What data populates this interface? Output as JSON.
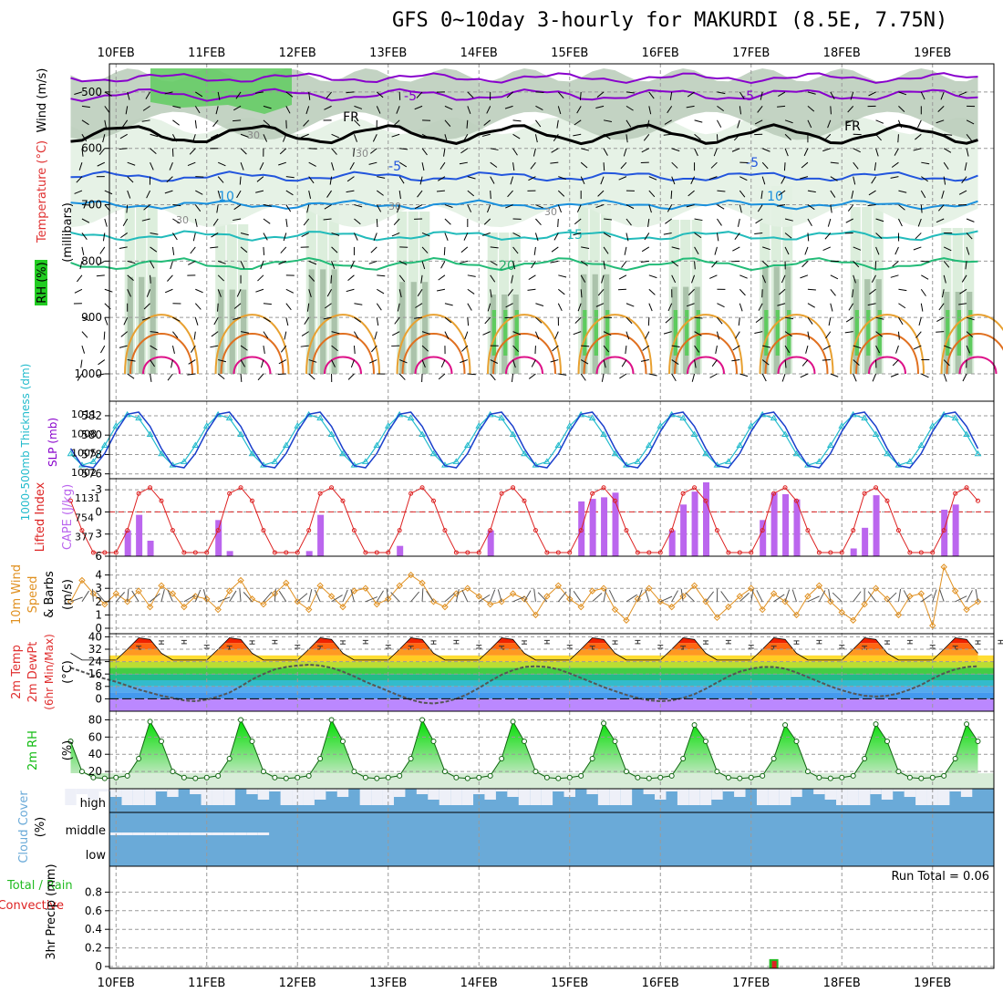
{
  "page": {
    "title": "GFS 0~10day 3-hourly for MAKURDI (8.5E, 7.75N)"
  },
  "colors": {
    "rh_green": "#22cc22",
    "wind_axis": "#000000",
    "temp_label": "#e03030",
    "tmp_purple": "#8800cc",
    "slp_cyan": "#22bbcc",
    "thick_blue": "#1a3fcc",
    "lifted_red": "#dd2222",
    "cape_purple": "#bb66ee",
    "wind10_orange": "#e09020",
    "rh2m_green": "#11bb11",
    "cloud_blue": "#6aaad8",
    "precip_green": "#22bb22",
    "precip_red": "#dd2222"
  },
  "chart_data": {
    "type": "multi-panel meteogram",
    "title": "GFS 0~10day 3-hourly for MAKURDI (8.5E, 7.75N)",
    "x_axis": {
      "dates": [
        "10FEB",
        "11FEB",
        "12FEB",
        "13FEB",
        "14FEB",
        "15FEB",
        "16FEB",
        "17FEB",
        "18FEB",
        "19FEB"
      ],
      "start_hours_before_first_date": 12,
      "step_hours": 3,
      "n_steps": 81
    },
    "panels": [
      {
        "id": "upper_air",
        "ylabel_parts": [
          "RH (%)",
          "Temperature (°C)",
          "Wind (m/s)"
        ],
        "y_units_label": "(millibars)",
        "yticks": [
          "500",
          "600",
          "700",
          "800",
          "900",
          "1000"
        ],
        "ylim": [
          450,
          1000
        ],
        "isotherm_labels": [
          "-5",
          "-5",
          "FR",
          "FR",
          "-5",
          "-5",
          "10",
          "10",
          "15",
          "20"
        ],
        "rh_labels": [
          "30",
          "30",
          "30",
          "30",
          "30"
        ]
      },
      {
        "id": "slp_thickness",
        "ylabel_left": "1000-500mb Thickness (dm)",
        "ylabel_right": "SLP (mb)",
        "left_ticks": [
          "582",
          "580",
          "578",
          "576"
        ],
        "right_ticks": [
          "1011",
          "1008",
          "1005",
          "1002"
        ],
        "slp_range": [
          1001,
          1013
        ],
        "thickness_range": [
          575.5,
          583.5
        ],
        "slp_amplitude": 4,
        "thickness_amplitude": 3
      },
      {
        "id": "li_cape",
        "ylabel_left": "Lifted Index",
        "ylabel_right": "CAPE (J/kg)",
        "left_ticks": [
          "-3",
          "0",
          "3",
          "6"
        ],
        "right_ticks": [
          "1131",
          "754",
          "377"
        ],
        "cape_bars": [
          {
            "date_index": 0,
            "values": [
              500,
              800,
              300
            ]
          },
          {
            "date_index": 1,
            "values": [
              700,
              100
            ]
          },
          {
            "date_index": 2,
            "values": [
              100,
              800
            ]
          },
          {
            "date_index": 3,
            "values": [
              200
            ]
          },
          {
            "date_index": 4,
            "values": [
              500
            ]
          },
          {
            "date_index": 5,
            "values": [
              1060,
              1110,
              1140,
              1230
            ]
          },
          {
            "date_index": 6,
            "values": [
              500,
              1000,
              1250,
              1430
            ]
          },
          {
            "date_index": 7,
            "values": [
              700,
              1230,
              1200,
              1100
            ]
          },
          {
            "date_index": 8,
            "values": [
              150,
              550,
              1180
            ]
          },
          {
            "date_index": 9,
            "values": [
              900,
              1000
            ]
          }
        ]
      },
      {
        "id": "wind10",
        "ylabel": "10m Wind Speed & Barbs (m/s)",
        "yticks": [
          "4",
          "3",
          "2",
          "1",
          "0"
        ],
        "ylim": [
          0,
          5
        ],
        "speeds": [
          2.0,
          3.6,
          2.6,
          1.8,
          2.6,
          2.0,
          2.8,
          1.6,
          3.2,
          2.6,
          1.6,
          2.4,
          2.2,
          1.4,
          2.8,
          3.6,
          2.2,
          1.8,
          2.6,
          3.4,
          2.0,
          1.4,
          3.2,
          2.4,
          1.6,
          2.8,
          3.0,
          1.8,
          2.2,
          3.2,
          4.0,
          3.4,
          2.0,
          1.6,
          2.6,
          3.0,
          2.4,
          1.8,
          2.0,
          2.6,
          2.2,
          1.0,
          2.4,
          3.2,
          2.2,
          1.6,
          2.8,
          3.0,
          1.4,
          0.6,
          2.2,
          3.0,
          2.0,
          1.6,
          2.4,
          3.2,
          2.0,
          0.8,
          1.6,
          2.4,
          3.0,
          1.4,
          2.6,
          2.0,
          1.0,
          2.4,
          3.2,
          2.0,
          1.2,
          0.6,
          1.8,
          3.0,
          2.2,
          1.0,
          2.4,
          2.6,
          0.2,
          4.6,
          2.8,
          1.4,
          2.0
        ]
      },
      {
        "id": "temp2m",
        "ylabel": "2m Temp 2m DewPt (6hr Min/Max) (°C)",
        "yticks": [
          "40",
          "32",
          "24",
          "16",
          "8",
          "0"
        ],
        "ylim": [
          -8,
          42
        ],
        "temp_min": 25,
        "temp_max": 40,
        "dewpoint": [
          20.0,
          17.5,
          15.0,
          13.0,
          11.0,
          8.5,
          6.0,
          4.0,
          2.0,
          0.5,
          -1.0,
          -1.5,
          -0.5,
          1.5,
          4.0,
          8.0,
          12.5,
          16.0,
          19.0,
          20.5,
          21.5,
          22.0,
          21.5,
          20.0,
          17.5,
          14.5,
          11.0,
          8.0,
          5.0,
          2.0,
          -0.5,
          -2.5,
          -3.0,
          -2.0,
          0.0,
          3.0,
          7.0,
          11.5,
          15.5,
          18.5,
          20.5,
          21.0,
          20.5,
          19.0,
          16.5,
          13.5,
          10.5,
          7.5,
          5.0,
          2.5,
          0.5,
          -1.0,
          -1.5,
          -1.0,
          0.5,
          3.0,
          6.5,
          10.5,
          14.5,
          17.5,
          19.5,
          20.5,
          20.5,
          19.5,
          17.0,
          14.0,
          11.0,
          8.0,
          5.5,
          3.5,
          2.0,
          1.5,
          2.0,
          3.5,
          6.0,
          9.0,
          13.0,
          16.5,
          19.0,
          20.5,
          21.0
        ]
      },
      {
        "id": "rh2m",
        "ylabel": "2m RH (%)",
        "yticks": [
          "80",
          "60",
          "40",
          "20"
        ],
        "ylim": [
          0,
          90
        ],
        "peaks": [
          80,
          78,
          80,
          80,
          80,
          78,
          76,
          74,
          74,
          75
        ]
      },
      {
        "id": "cloud",
        "ylabel": "Cloud Cover (%)",
        "levels": [
          "high",
          "middle",
          "low"
        ]
      },
      {
        "id": "precip",
        "ylabel_parts": [
          "Total / Rain",
          "Convective"
        ],
        "ylabel_units": "3hr Precip (mm)",
        "yticks": [
          "0.8",
          "0.6",
          "0.4",
          "0.2",
          "0"
        ],
        "ylim": [
          0,
          1.0
        ],
        "run_total_text": "Run Total = 0.06",
        "events": [
          {
            "date_index": 7,
            "hour": 6,
            "total": 0.06,
            "convective": 0.04
          }
        ]
      }
    ]
  }
}
